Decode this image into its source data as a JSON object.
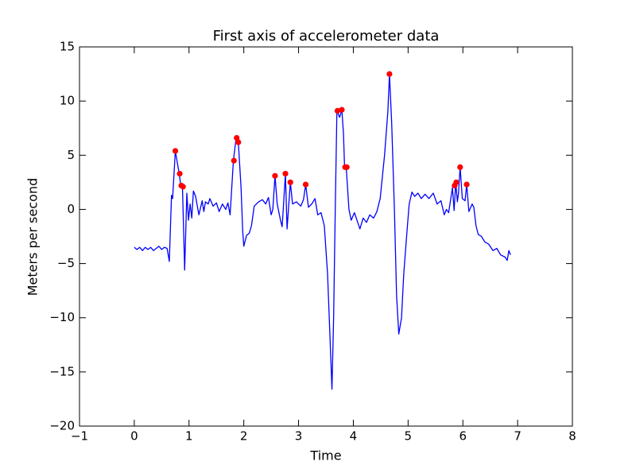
{
  "chart_data": {
    "type": "line",
    "title": "First axis of accelerometer data",
    "xlabel": "Time",
    "ylabel": "Meters per second",
    "xlim": [
      -1,
      8
    ],
    "ylim": [
      -20,
      15
    ],
    "xticks": [
      {
        "value": -1,
        "label": "−1"
      },
      0,
      1,
      2,
      3,
      4,
      5,
      6,
      7,
      8
    ],
    "yticks": [
      {
        "value": -20,
        "label": "−20"
      },
      {
        "value": -15,
        "label": "−15"
      },
      {
        "value": -10,
        "label": "−10"
      },
      {
        "value": -5,
        "label": "−5"
      },
      0,
      5,
      10,
      15
    ],
    "series": [
      {
        "type": "line",
        "color": "#0000ff",
        "x": [
          0,
          0.05,
          0.1,
          0.15,
          0.2,
          0.25,
          0.3,
          0.35,
          0.4,
          0.45,
          0.5,
          0.55,
          0.6,
          0.64,
          0.68,
          0.7,
          0.75,
          0.82,
          0.85,
          0.88,
          0.92,
          0.96,
          0.99,
          1.02,
          1.05,
          1.08,
          1.12,
          1.18,
          1.24,
          1.27,
          1.3,
          1.35,
          1.38,
          1.44,
          1.5,
          1.55,
          1.61,
          1.67,
          1.71,
          1.75,
          1.81,
          1.86,
          1.9,
          1.95,
          1.98,
          2.0,
          2.05,
          2.1,
          2.14,
          2.19,
          2.27,
          2.34,
          2.4,
          2.45,
          2.5,
          2.53,
          2.57,
          2.61,
          2.67,
          2.7,
          2.73,
          2.76,
          2.79,
          2.85,
          2.89,
          2.96,
          3.04,
          3.09,
          3.13,
          3.18,
          3.24,
          3.3,
          3.35,
          3.41,
          3.47,
          3.53,
          3.61,
          3.64,
          3.67,
          3.7,
          3.75,
          3.79,
          3.82,
          3.84,
          3.87,
          3.92,
          3.96,
          4.02,
          4.08,
          4.12,
          4.18,
          4.24,
          4.3,
          4.37,
          4.43,
          4.49,
          4.57,
          4.63,
          4.66,
          4.7,
          4.75,
          4.79,
          4.83,
          4.88,
          4.92,
          4.98,
          5.02,
          5.07,
          5.12,
          5.18,
          5.24,
          5.31,
          5.38,
          5.46,
          5.53,
          5.6,
          5.66,
          5.7,
          5.74,
          5.81,
          5.84,
          5.87,
          5.9,
          5.92,
          5.95,
          5.99,
          6.04,
          6.07,
          6.11,
          6.17,
          6.2,
          6.24,
          6.28,
          6.34,
          6.4,
          6.47,
          6.55,
          6.62,
          6.69,
          6.77,
          6.81,
          6.84,
          6.87
        ],
        "values": [
          -3.5,
          -3.7,
          -3.5,
          -3.8,
          -3.5,
          -3.7,
          -3.5,
          -3.8,
          -3.6,
          -3.4,
          -3.7,
          -3.5,
          -3.6,
          -4.8,
          1.3,
          1.0,
          5.4,
          3.3,
          2.2,
          2.1,
          -5.6,
          1.5,
          -1,
          0.5,
          -0.8,
          1.7,
          1.2,
          -0.5,
          0.8,
          -0.2,
          0.7,
          0.5,
          1,
          0.3,
          0.6,
          -0.2,
          0.5,
          0,
          0.6,
          -0.5,
          4.5,
          6.6,
          6.2,
          2,
          -2,
          -3.4,
          -2.4,
          -2.2,
          -1.5,
          0.3,
          0.7,
          0.9,
          0.5,
          1.1,
          -0.5,
          0,
          3.1,
          0.5,
          -1,
          -1.6,
          0.8,
          3.3,
          -1.8,
          2.5,
          0.5,
          0.7,
          0.3,
          0.9,
          2.3,
          0.2,
          0.5,
          1,
          -0.5,
          -0.3,
          -1.5,
          -6,
          -16.6,
          -10,
          0,
          9.1,
          8.5,
          9.2,
          7,
          3.9,
          3.9,
          0,
          -1,
          -0.3,
          -1.2,
          -1.8,
          -0.8,
          -1.2,
          -0.5,
          -0.8,
          -0.2,
          1,
          5,
          9,
          12.5,
          8,
          0,
          -8,
          -11.5,
          -10,
          -6,
          -2,
          0.5,
          1.6,
          1.2,
          1.5,
          1,
          1.4,
          1,
          1.5,
          0.5,
          0.8,
          -0.5,
          0,
          -0.3,
          2,
          -0.1,
          2.5,
          0.7,
          1.5,
          3.9,
          1,
          0.8,
          2.3,
          -0.2,
          0.5,
          0.2,
          -1.5,
          -2.3,
          -2.5,
          -3,
          -3.2,
          -3.8,
          -3.6,
          -4.2,
          -4.4,
          -4.7,
          -3.8,
          -4.2
        ]
      },
      {
        "type": "scatter",
        "color": "#ff0000",
        "x": [
          0.75,
          0.83,
          0.86,
          0.89,
          1.82,
          1.87,
          1.9,
          2.57,
          2.76,
          2.85,
          3.13,
          3.71,
          3.79,
          3.85,
          3.88,
          4.66,
          5.85,
          5.88,
          5.95,
          6.07
        ],
        "values": [
          5.4,
          3.3,
          2.2,
          2.1,
          4.5,
          6.6,
          6.2,
          3.1,
          3.3,
          2.5,
          2.3,
          9.1,
          9.2,
          3.9,
          3.9,
          12.5,
          2.2,
          2.5,
          3.9,
          2.3
        ]
      }
    ]
  }
}
